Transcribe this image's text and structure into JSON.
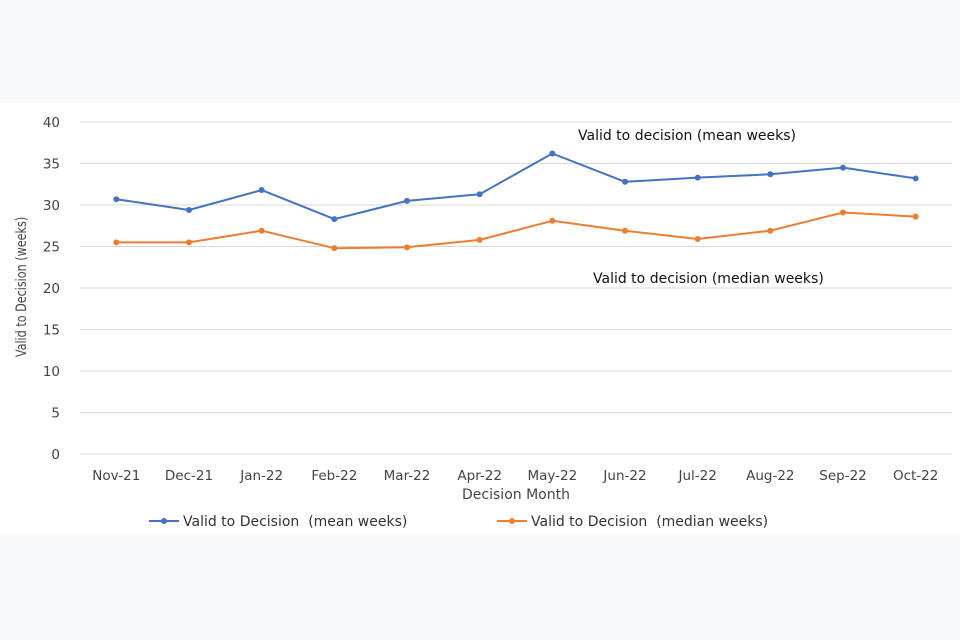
{
  "chart_data": {
    "type": "line",
    "title": "",
    "xlabel": "Decision Month",
    "ylabel": "Valid to Decision (weeks)",
    "ylim": [
      0,
      40
    ],
    "yticks": [
      0,
      5,
      10,
      15,
      20,
      25,
      30,
      35,
      40
    ],
    "grid": true,
    "legend_position": "bottom",
    "categories": [
      "Nov-21",
      "Dec-21",
      "Jan-22",
      "Feb-22",
      "Mar-22",
      "Apr-22",
      "May-22",
      "Jun-22",
      "Jul-22",
      "Aug-22",
      "Sep-22",
      "Oct-22"
    ],
    "series": [
      {
        "name": "Valid to Decision  (mean weeks)",
        "color": "#4472c4",
        "values": [
          30.7,
          29.4,
          31.8,
          28.3,
          30.5,
          31.3,
          36.2,
          32.8,
          33.3,
          33.7,
          34.5,
          33.2
        ]
      },
      {
        "name": "Valid to Decision  (median weeks)",
        "color": "#ed7d31",
        "values": [
          25.5,
          25.5,
          26.9,
          24.8,
          24.9,
          25.8,
          28.1,
          26.9,
          25.9,
          26.9,
          29.1,
          28.6
        ]
      }
    ],
    "annotations": [
      "Valid to decision (mean weeks)",
      "Valid to decision (median weeks)"
    ]
  }
}
